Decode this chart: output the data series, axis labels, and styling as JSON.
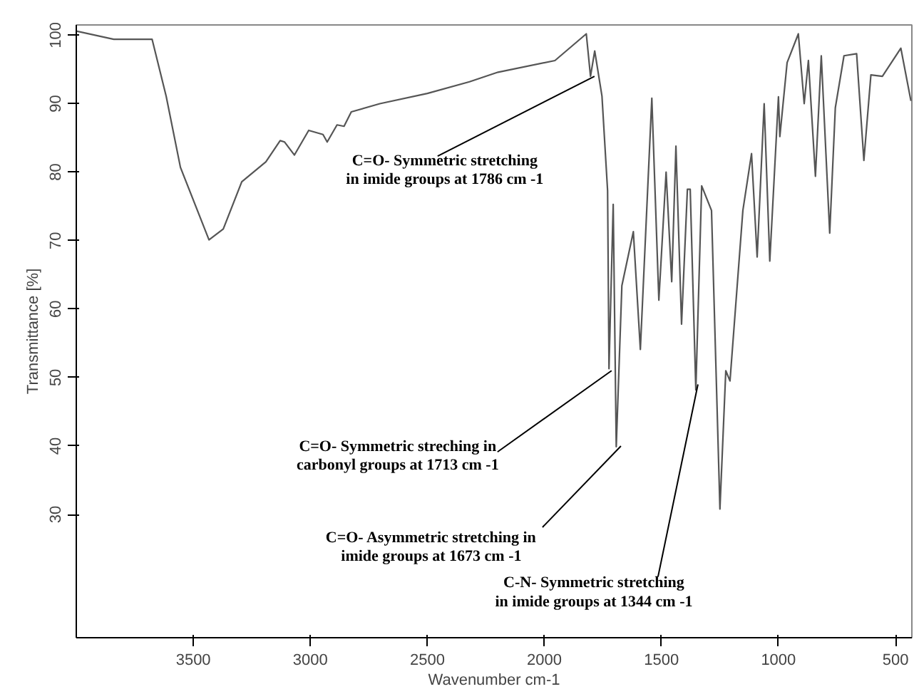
{
  "chart_data": {
    "type": "line",
    "xlabel": "Wavenumber cm-1",
    "ylabel": "Transmittance [%]",
    "xlim": [
      4000,
      430
    ],
    "ylim": [
      12,
      101.5
    ],
    "xticks": [
      3500,
      3000,
      2500,
      2000,
      1500,
      1000,
      500
    ],
    "yticks": [
      30,
      40,
      50,
      60,
      70,
      80,
      90,
      100
    ],
    "line_style": "solid",
    "series": [
      {
        "color": "#555555",
        "x": [
          4000,
          3840,
          3676,
          3616,
          3555,
          3433,
          3372,
          3293,
          3190,
          3129,
          3110,
          3068,
          3007,
          2946,
          2928,
          2886,
          2856,
          2825,
          2703,
          2500,
          2320,
          2198,
          1955,
          1821,
          1803,
          1785,
          1754,
          1730,
          1724,
          1706,
          1693,
          1669,
          1620,
          1590,
          1541,
          1511,
          1480,
          1456,
          1438,
          1414,
          1389,
          1377,
          1353,
          1328,
          1286,
          1250,
          1225,
          1207,
          1152,
          1115,
          1091,
          1061,
          1037,
          1000,
          994,
          963,
          915,
          890,
          872,
          842,
          817,
          781,
          757,
          720,
          666,
          635,
          605,
          556,
          477,
          434
        ],
        "values": [
          100.6,
          99.4,
          99.4,
          91.1,
          80.7,
          70.1,
          71.7,
          78.6,
          81.5,
          84.6,
          84.4,
          82.5,
          86.1,
          85.5,
          84.4,
          86.9,
          86.7,
          88.8,
          90.0,
          91.5,
          93.2,
          94.6,
          96.3,
          100.2,
          94.0,
          97.7,
          91.1,
          77.3,
          51.3,
          75.3,
          39.9,
          63.4,
          71.3,
          54.1,
          90.8,
          61.3,
          80,
          64,
          83.8,
          57.8,
          77.5,
          77.5,
          48.2,
          78,
          74.4,
          30.8,
          51,
          49.5,
          74.4,
          82.7,
          67.6,
          90,
          67,
          91,
          85.2,
          96,
          100.2,
          90,
          96.3,
          79.4,
          97,
          71.1,
          89.4,
          97,
          97.3,
          81.7,
          94.2,
          94,
          98.1,
          90.4
        ]
      }
    ],
    "annotations": [
      {
        "text": "C=O- Symmetric stretching\nin imide groups at 1786 cm -1",
        "x": 1786,
        "y": 94
      },
      {
        "text": "C=O- Symmetric streching in\ncarbonyl groups at 1713 cm -1",
        "x": 1713,
        "y": 51
      },
      {
        "text": "C=O- Asymmetric stretching in\nimide groups at 1673 cm -1",
        "x": 1673,
        "y": 40
      },
      {
        "text": "C-N- Symmetric stretching\nin imide groups at 1344 cm -1",
        "x": 1344,
        "y": 49
      }
    ]
  }
}
